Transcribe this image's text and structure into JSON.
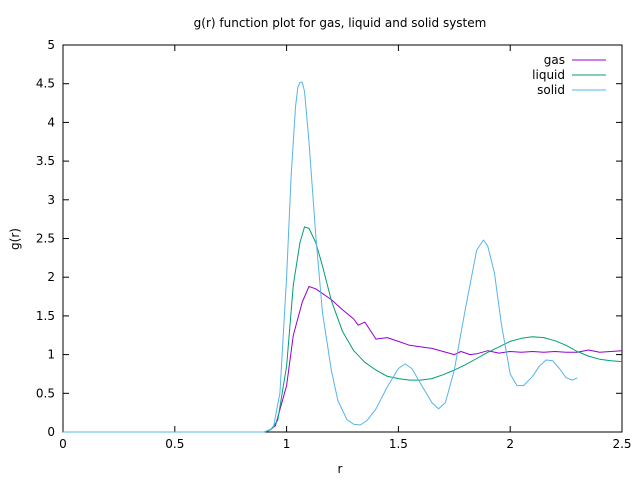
{
  "chart_data": {
    "type": "line",
    "title": "g(r) function plot for gas, liquid and solid system",
    "xlabel": "r",
    "ylabel": "g(r)",
    "xlim": [
      0,
      2.5
    ],
    "ylim": [
      0,
      5
    ],
    "xticks": [
      "0",
      "0.5",
      "1",
      "1.5",
      "2",
      "2.5"
    ],
    "yticks": [
      "0",
      "0.5",
      "1",
      "1.5",
      "2",
      "2.5",
      "3",
      "3.5",
      "4",
      "4.5",
      "5"
    ],
    "grid": false,
    "legend_position": "top-right",
    "series": [
      {
        "name": "gas",
        "color": "#9400d3",
        "points": [
          [
            0,
            0
          ],
          [
            0.9,
            0
          ],
          [
            0.92,
            0.02
          ],
          [
            0.95,
            0.08
          ],
          [
            1.0,
            0.6
          ],
          [
            1.03,
            1.25
          ],
          [
            1.07,
            1.68
          ],
          [
            1.1,
            1.88
          ],
          [
            1.13,
            1.85
          ],
          [
            1.2,
            1.71
          ],
          [
            1.25,
            1.58
          ],
          [
            1.3,
            1.46
          ],
          [
            1.32,
            1.38
          ],
          [
            1.35,
            1.42
          ],
          [
            1.4,
            1.2
          ],
          [
            1.45,
            1.22
          ],
          [
            1.5,
            1.17
          ],
          [
            1.55,
            1.12
          ],
          [
            1.6,
            1.1
          ],
          [
            1.65,
            1.08
          ],
          [
            1.7,
            1.04
          ],
          [
            1.75,
            1.0
          ],
          [
            1.78,
            1.04
          ],
          [
            1.82,
            1.0
          ],
          [
            1.85,
            1.01
          ],
          [
            1.9,
            1.05
          ],
          [
            1.95,
            1.02
          ],
          [
            2.0,
            1.04
          ],
          [
            2.05,
            1.03
          ],
          [
            2.1,
            1.04
          ],
          [
            2.15,
            1.03
          ],
          [
            2.2,
            1.04
          ],
          [
            2.25,
            1.03
          ],
          [
            2.3,
            1.03
          ],
          [
            2.35,
            1.06
          ],
          [
            2.4,
            1.03
          ],
          [
            2.45,
            1.04
          ],
          [
            2.5,
            1.05
          ]
        ]
      },
      {
        "name": "liquid",
        "color": "#009e73",
        "points": [
          [
            0,
            0
          ],
          [
            0.9,
            0
          ],
          [
            0.93,
            0.03
          ],
          [
            0.96,
            0.15
          ],
          [
            1.0,
            0.85
          ],
          [
            1.03,
            1.9
          ],
          [
            1.06,
            2.45
          ],
          [
            1.08,
            2.65
          ],
          [
            1.1,
            2.63
          ],
          [
            1.13,
            2.45
          ],
          [
            1.16,
            2.15
          ],
          [
            1.2,
            1.7
          ],
          [
            1.25,
            1.3
          ],
          [
            1.3,
            1.05
          ],
          [
            1.35,
            0.9
          ],
          [
            1.4,
            0.8
          ],
          [
            1.45,
            0.72
          ],
          [
            1.5,
            0.69
          ],
          [
            1.55,
            0.67
          ],
          [
            1.6,
            0.67
          ],
          [
            1.65,
            0.69
          ],
          [
            1.7,
            0.74
          ],
          [
            1.75,
            0.8
          ],
          [
            1.8,
            0.87
          ],
          [
            1.85,
            0.95
          ],
          [
            1.9,
            1.03
          ],
          [
            1.95,
            1.1
          ],
          [
            2.0,
            1.17
          ],
          [
            2.05,
            1.21
          ],
          [
            2.1,
            1.23
          ],
          [
            2.15,
            1.22
          ],
          [
            2.2,
            1.18
          ],
          [
            2.25,
            1.12
          ],
          [
            2.3,
            1.04
          ],
          [
            2.35,
            0.98
          ],
          [
            2.4,
            0.94
          ],
          [
            2.45,
            0.92
          ],
          [
            2.5,
            0.91
          ]
        ]
      },
      {
        "name": "solid",
        "color": "#56b4e9",
        "points": [
          [
            0,
            0
          ],
          [
            0.9,
            0
          ],
          [
            0.94,
            0.05
          ],
          [
            0.97,
            0.5
          ],
          [
            1.0,
            2.0
          ],
          [
            1.02,
            3.3
          ],
          [
            1.04,
            4.2
          ],
          [
            1.05,
            4.45
          ],
          [
            1.06,
            4.52
          ],
          [
            1.07,
            4.52
          ],
          [
            1.08,
            4.4
          ],
          [
            1.1,
            3.75
          ],
          [
            1.13,
            2.55
          ],
          [
            1.16,
            1.55
          ],
          [
            1.2,
            0.8
          ],
          [
            1.23,
            0.4
          ],
          [
            1.27,
            0.16
          ],
          [
            1.3,
            0.1
          ],
          [
            1.33,
            0.09
          ],
          [
            1.36,
            0.15
          ],
          [
            1.4,
            0.3
          ],
          [
            1.45,
            0.58
          ],
          [
            1.5,
            0.82
          ],
          [
            1.53,
            0.88
          ],
          [
            1.56,
            0.82
          ],
          [
            1.6,
            0.62
          ],
          [
            1.65,
            0.38
          ],
          [
            1.68,
            0.3
          ],
          [
            1.71,
            0.38
          ],
          [
            1.75,
            0.8
          ],
          [
            1.8,
            1.6
          ],
          [
            1.85,
            2.35
          ],
          [
            1.88,
            2.48
          ],
          [
            1.9,
            2.4
          ],
          [
            1.93,
            2.05
          ],
          [
            1.96,
            1.4
          ],
          [
            2.0,
            0.75
          ],
          [
            2.03,
            0.6
          ],
          [
            2.06,
            0.6
          ],
          [
            2.1,
            0.72
          ],
          [
            2.13,
            0.85
          ],
          [
            2.16,
            0.93
          ],
          [
            2.19,
            0.92
          ],
          [
            2.22,
            0.82
          ],
          [
            2.25,
            0.7
          ],
          [
            2.28,
            0.67
          ],
          [
            2.3,
            0.7
          ]
        ]
      }
    ]
  }
}
